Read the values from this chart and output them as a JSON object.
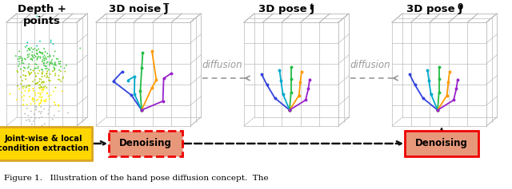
{
  "title_depth": "Depth +\npoints",
  "title_noise": "3D noise J",
  "title_noise_sup": "T",
  "title_pose_t": "3D pose J",
  "title_pose_t_sup": "t",
  "title_pose_0": "3D pose J",
  "title_pose_0_sup": "0",
  "caption": "Figure 1.   Illustration of the hand pose diffusion concept.  The",
  "box1_text": "Joint-wise & local\ncondition extraction",
  "box2_text": "Denoising",
  "box3_text": "Denoising",
  "diffusion_text": "diffusion",
  "box1_facecolor": "#FFD700",
  "box1_edgecolor": "#DAA520",
  "box2_facecolor": "#E8987A",
  "box2_edgecolor": "#EE0000",
  "box3_facecolor": "#E8987A",
  "box3_edgecolor": "#EE0000",
  "bg_color": "#FFFFFF",
  "grid_color": "#BBBBBB",
  "arrow_color": "#888888",
  "flow_arrow_color": "#111111",
  "diffusion_color": "#999999"
}
